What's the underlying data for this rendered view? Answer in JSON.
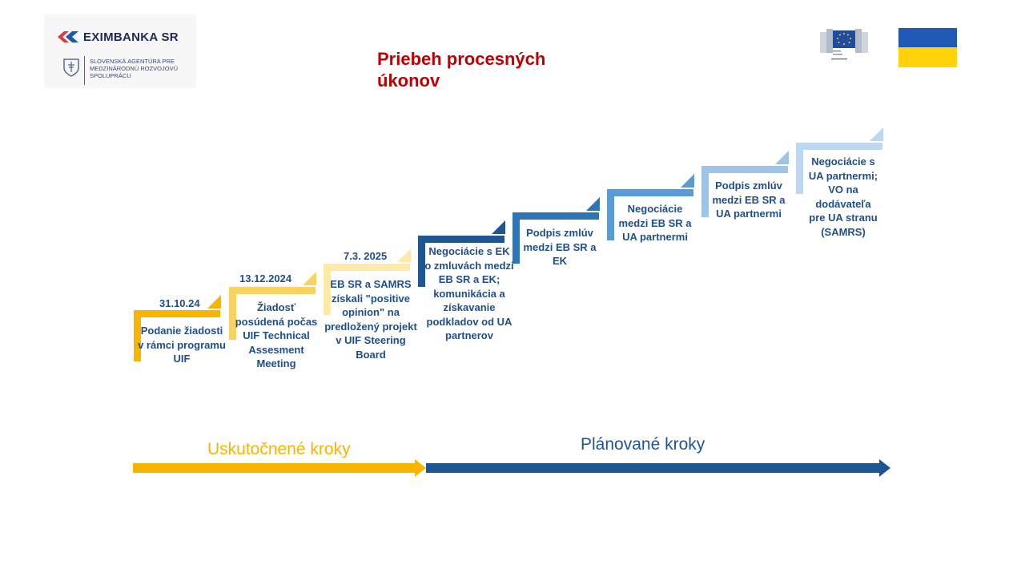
{
  "header": {
    "title": "Priebeh procesných úkonov",
    "eximbanka_logo_text": "EXIMBANKA SR",
    "agency_text": "SLOVENSKÁ AGENTÚRA PRE MEDZINÁRODNÚ ROZVOJOVÚ SPOLUPRÁCU",
    "ec_logo_icon": "european-commission-logo-icon",
    "flag_icon": "ukraine-flag-icon"
  },
  "steps": [
    {
      "date": "31.10.24",
      "text": "Podanie žiadosti v rámci programu UIF",
      "color": "#f7b500"
    },
    {
      "date": "13.12.2024",
      "text": "Žiadosť posúdená počas UIF Technical Assesment Meeting",
      "color": "#f9d262"
    },
    {
      "date": "7.3. 2025",
      "text": "EB SR a SAMRS získali \"positive opinion\" na predložený projekt v UIF Steering Board",
      "color": "#fde9a8"
    },
    {
      "date": "",
      "text": "Negociácie s EK o zmluvách medzi EB SR a EK; komunikácia a získavanie podkladov od UA partnerov",
      "color": "#1f5590"
    },
    {
      "date": "",
      "text": "Podpis zmlúv medzi EB SR a EK",
      "color": "#2e75b6"
    },
    {
      "date": "",
      "text": "Negociácie medzi EB SR a UA partnermi",
      "color": "#5b9bd5"
    },
    {
      "date": "",
      "text": "Podpis zmlúv medzi EB SR a UA partnermi",
      "color": "#9dc3e6"
    },
    {
      "date": "",
      "text": "Negociácie s UA partnermi; VO na dodávateľa pre UA stranu (SAMRS)",
      "color": "#bdd7ee"
    }
  ],
  "timeline": {
    "done_label": "Uskutočnené kroky",
    "planned_label": "Plánované kroky",
    "done_color": "#f7b500",
    "planned_color": "#1f5590"
  }
}
